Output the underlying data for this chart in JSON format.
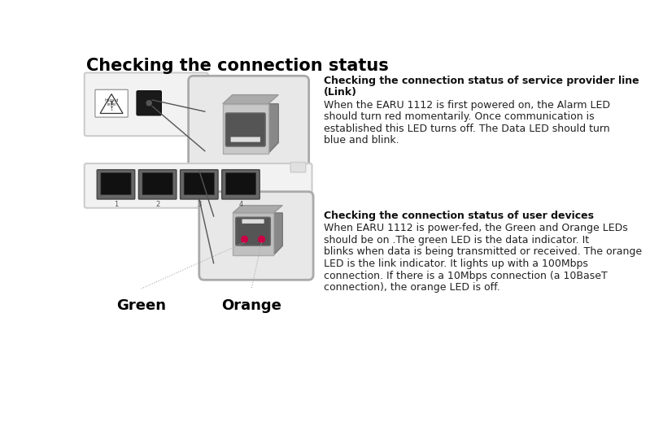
{
  "title": "Checking the connection status",
  "title_fontsize": 15,
  "bg_color": "#ffffff",
  "section1_heading_line1": "Checking the connection status of service provider line",
  "section1_heading_line2": "(Link)",
  "section1_body_lines": [
    "When the EARU 1112 is first powered on, the Alarm LED",
    "should turn red momentarily. Once communication is",
    "established this LED turns off. The Data LED should turn",
    "blue and blink."
  ],
  "section2_heading": "Checking the connection status of user devices",
  "section2_body_lines": [
    "When EARU 1112 is power-fed, the Green and Orange LEDs",
    "should be on .The green LED is the data indicator. It",
    "blinks when data is being transmitted or received. The orange",
    "LED is the link indicator. It lights up with a 100Mbps",
    "connection. If there is a 10Mbps connection (a 10BaseT",
    "connection), the orange LED is off."
  ],
  "label_green": "Green",
  "label_orange": "Orange",
  "label_color": "#000000",
  "panel_bg": "#f2f2f2",
  "panel_edge": "#cccccc",
  "zoom_bg": "#e8e8e8",
  "zoom_edge": "#aaaaaa",
  "connector_line_color": "#555555",
  "dot_line_color": "#aaaaaa",
  "led_dot_color": "#cc0044"
}
